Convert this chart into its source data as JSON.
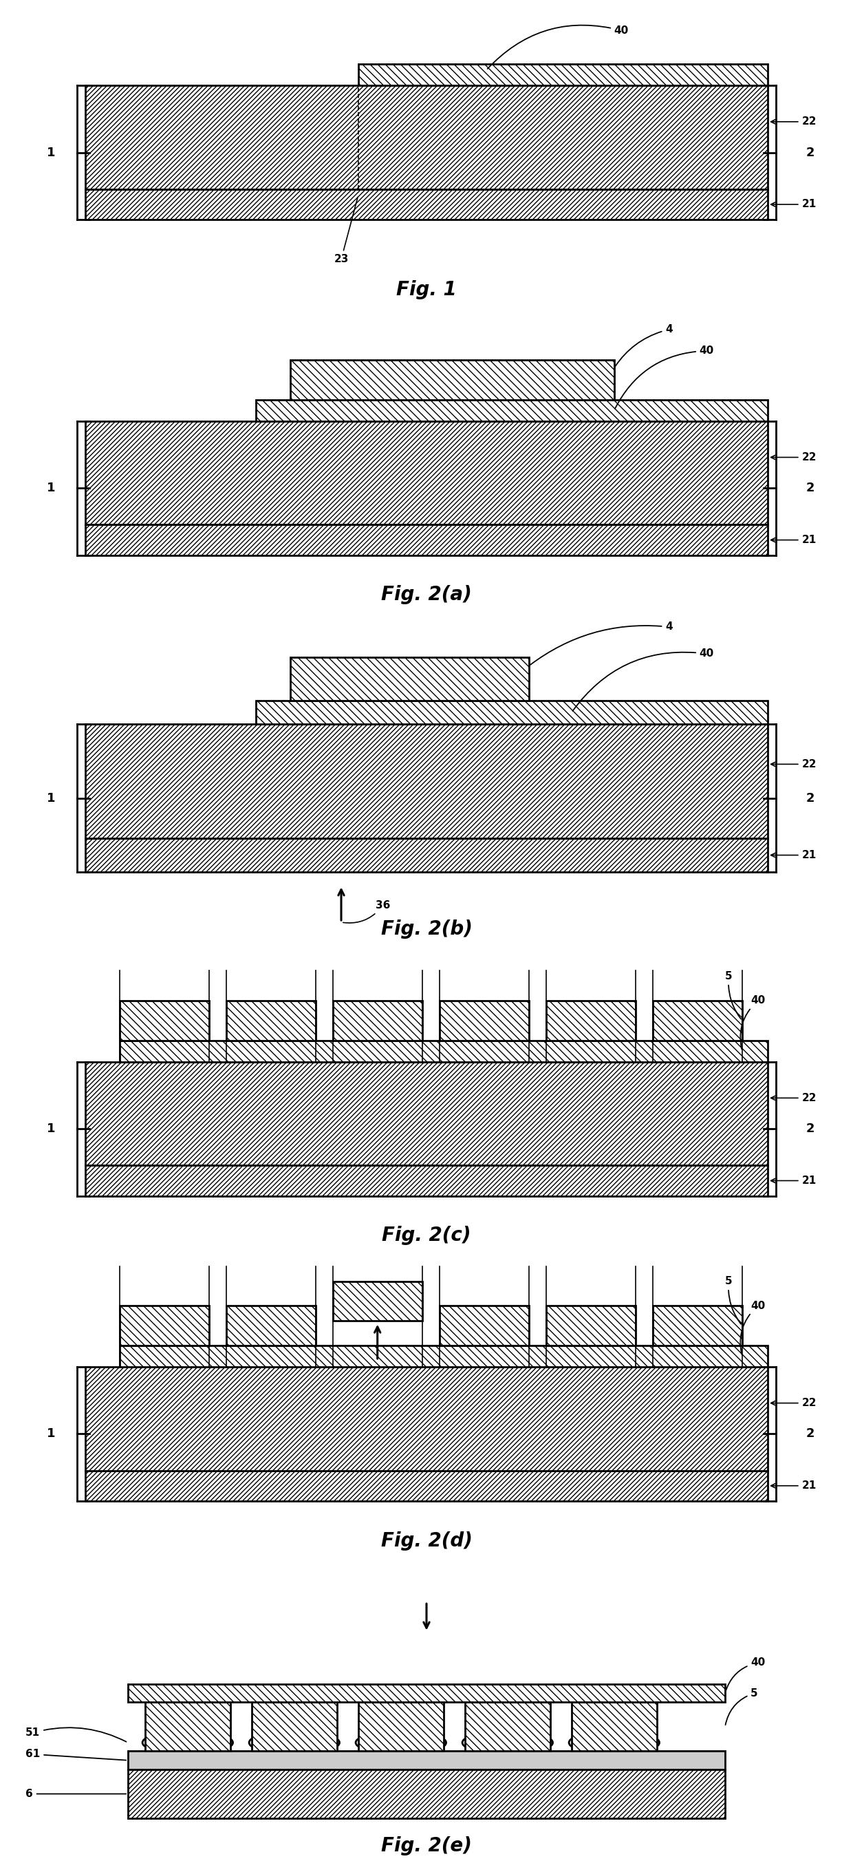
{
  "bg_color": "#ffffff",
  "lw_thick": 2.0,
  "lw_thin": 1.2,
  "fig_label_size": 20,
  "annot_size": 11,
  "brace_size": 13,
  "figures": [
    "Fig. 1",
    "Fig. 2(a)",
    "Fig. 2(b)",
    "Fig. 2(c)",
    "Fig. 2(d)",
    "Fig. 2(e)"
  ]
}
